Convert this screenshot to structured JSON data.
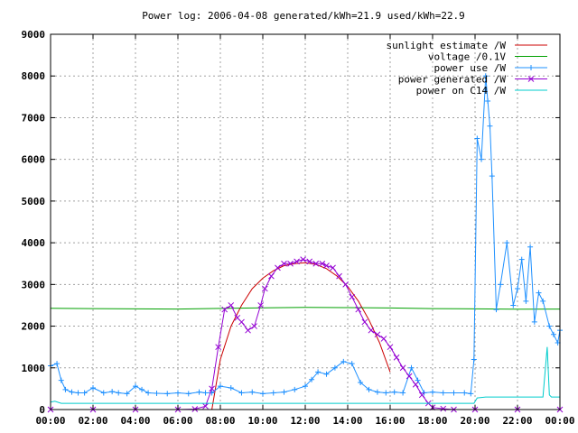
{
  "chart_data": {
    "type": "line",
    "title": "Power log: 2006-04-08 generated/kWh=21.9 used/kWh=22.9",
    "xlabel": "",
    "ylabel": "",
    "xlim_hours": [
      0,
      24
    ],
    "ylim": [
      0,
      9000
    ],
    "x_ticks": [
      "00:00",
      "02:00",
      "04:00",
      "06:00",
      "08:00",
      "10:00",
      "12:00",
      "14:00",
      "16:00",
      "18:00",
      "20:00",
      "22:00",
      "00:00"
    ],
    "y_ticks": [
      0,
      1000,
      2000,
      3000,
      4000,
      5000,
      6000,
      7000,
      8000,
      9000
    ],
    "grid": true,
    "legend_position": "top-right",
    "series": [
      {
        "name": "sunlight estimate /W",
        "color": "#cc0000",
        "marker": "none",
        "x": [
          7.6,
          8.0,
          8.5,
          9.0,
          9.5,
          10.0,
          10.5,
          11.0,
          11.5,
          12.0,
          12.5,
          13.0,
          13.5,
          14.0,
          14.5,
          15.0,
          15.5,
          16.0
        ],
        "y": [
          0,
          1200,
          2000,
          2500,
          2900,
          3150,
          3330,
          3450,
          3500,
          3520,
          3480,
          3380,
          3200,
          2950,
          2600,
          2150,
          1600,
          900
        ]
      },
      {
        "name": "voltage /0.1V",
        "color": "#00a000",
        "marker": "none",
        "x": [
          0,
          2,
          4,
          6,
          8,
          10,
          12,
          14,
          16,
          18,
          20,
          22,
          24
        ],
        "y": [
          2430,
          2420,
          2415,
          2410,
          2425,
          2440,
          2450,
          2445,
          2435,
          2420,
          2415,
          2405,
          2410
        ]
      },
      {
        "name": "power use /W",
        "color": "#1e90ff",
        "marker": "plus",
        "x": [
          0.0,
          0.3,
          0.5,
          0.7,
          1.0,
          1.3,
          1.6,
          2.0,
          2.5,
          2.9,
          3.2,
          3.6,
          4.0,
          4.3,
          4.6,
          5.0,
          5.5,
          6.0,
          6.5,
          7.0,
          7.3,
          7.6,
          8.0,
          8.5,
          9.0,
          9.5,
          10.0,
          10.5,
          11.0,
          11.5,
          12.0,
          12.3,
          12.6,
          13.0,
          13.4,
          13.8,
          14.2,
          14.6,
          15.0,
          15.4,
          15.8,
          16.2,
          16.6,
          17.0,
          17.3,
          17.6,
          18.0,
          18.5,
          19.0,
          19.5,
          19.8,
          19.95,
          20.1,
          20.3,
          20.5,
          20.6,
          20.7,
          20.8,
          21.0,
          21.2,
          21.5,
          21.8,
          22.0,
          22.2,
          22.4,
          22.6,
          22.8,
          23.0,
          23.2,
          23.5,
          23.7,
          23.9,
          24.0
        ],
        "y": [
          1050,
          1100,
          700,
          480,
          420,
          400,
          400,
          520,
          400,
          430,
          400,
          380,
          560,
          480,
          400,
          390,
          380,
          400,
          380,
          420,
          400,
          400,
          560,
          520,
          400,
          420,
          380,
          400,
          420,
          480,
          560,
          720,
          900,
          850,
          1000,
          1150,
          1100,
          650,
          480,
          420,
          400,
          420,
          400,
          1000,
          700,
          400,
          420,
          400,
          400,
          400,
          380,
          1200,
          6500,
          6000,
          8000,
          7400,
          6800,
          5600,
          2400,
          3000,
          4000,
          2500,
          2900,
          3600,
          2600,
          3900,
          2100,
          2800,
          2600,
          2000,
          1800,
          1600,
          1900
        ]
      },
      {
        "name": "power generated /W",
        "color": "#9400d3",
        "marker": "cross",
        "x": [
          0,
          2,
          4,
          6,
          6.8,
          7.3,
          7.6,
          7.9,
          8.2,
          8.5,
          8.8,
          9.0,
          9.3,
          9.6,
          9.9,
          10.1,
          10.4,
          10.7,
          11.0,
          11.3,
          11.6,
          11.9,
          12.2,
          12.5,
          12.8,
          13.0,
          13.3,
          13.6,
          13.9,
          14.2,
          14.5,
          14.8,
          15.1,
          15.4,
          15.7,
          16.0,
          16.3,
          16.6,
          16.9,
          17.2,
          17.5,
          17.8,
          18.0,
          18.5,
          19.0,
          20.0,
          22.0,
          24.0
        ],
        "y": [
          0,
          0,
          0,
          0,
          10,
          80,
          500,
          1500,
          2400,
          2500,
          2200,
          2100,
          1900,
          2000,
          2500,
          2900,
          3200,
          3400,
          3500,
          3500,
          3550,
          3600,
          3550,
          3500,
          3500,
          3450,
          3400,
          3200,
          3000,
          2700,
          2400,
          2100,
          1900,
          1800,
          1700,
          1500,
          1250,
          1000,
          800,
          600,
          350,
          150,
          50,
          20,
          0,
          0,
          0,
          0
        ]
      },
      {
        "name": "power on C14 /W",
        "color": "#00cccc",
        "marker": "none",
        "x": [
          0.0,
          0.2,
          0.5,
          4.0,
          8.0,
          12.0,
          16.0,
          19.95,
          20.1,
          20.5,
          21.0,
          22.0,
          23.0,
          23.2,
          23.4,
          23.5,
          23.6,
          24.0
        ],
        "y": [
          180,
          200,
          150,
          150,
          150,
          150,
          150,
          150,
          280,
          300,
          300,
          300,
          300,
          300,
          1500,
          350,
          300,
          300
        ]
      }
    ]
  }
}
